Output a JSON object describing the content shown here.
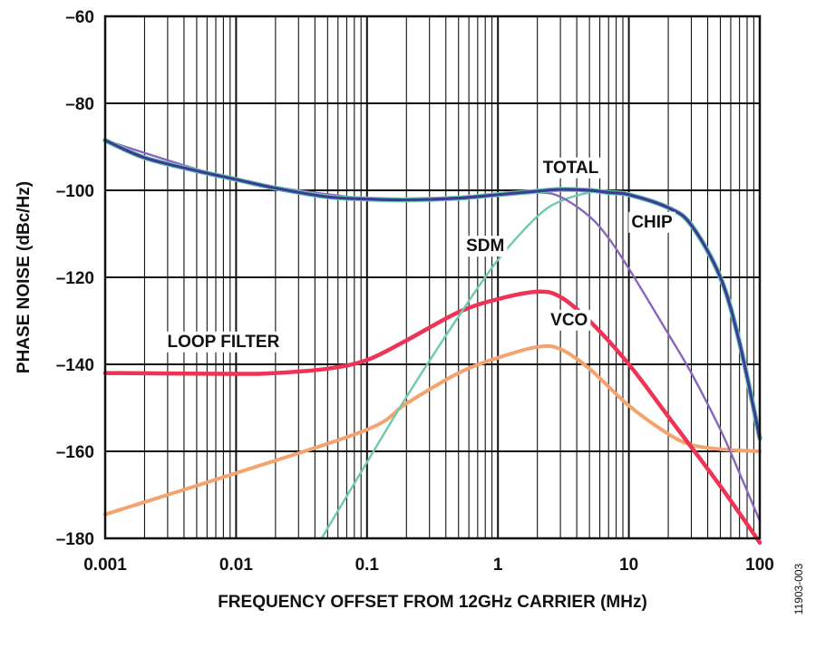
{
  "figure_id": "11903-003",
  "chart_data": {
    "type": "line",
    "xlabel": "FREQUENCY OFFSET FROM 12GHz CARRIER (MHz)",
    "ylabel": "PHASE NOISE (dBc/Hz)",
    "x_scale": "log",
    "xlim": [
      0.001,
      100
    ],
    "ylim": [
      -180,
      -60
    ],
    "x_ticks": [
      0.001,
      0.01,
      0.1,
      1,
      10,
      100
    ],
    "x_tick_labels": [
      "0.001",
      "0.01",
      "0.1",
      "1",
      "10",
      "100"
    ],
    "y_ticks": [
      -60,
      -80,
      -100,
      -120,
      -140,
      -160,
      -180
    ],
    "y_tick_labels": [
      "–60",
      "–80",
      "–100",
      "–120",
      "–140",
      "–160",
      "–180"
    ],
    "grid": true,
    "legend": "none",
    "series": [
      {
        "name": "TOTAL",
        "color": "#3c3c96",
        "x": [
          0.001,
          0.002,
          0.005,
          0.01,
          0.02,
          0.05,
          0.1,
          0.2,
          0.5,
          1,
          2,
          3,
          5,
          7,
          10,
          20,
          30,
          50,
          70,
          100
        ],
        "y": [
          -88.5,
          -92.5,
          -95.5,
          -97.5,
          -99.5,
          -101.5,
          -102,
          -102.2,
          -101.8,
          -101,
          -100.2,
          -99.8,
          -100,
          -100.5,
          -101,
          -104,
          -108,
          -120,
          -135,
          -157
        ]
      },
      {
        "name": "CHIP",
        "color": "#8866bb",
        "x": [
          0.001,
          0.01,
          0.1,
          0.2,
          0.5,
          1,
          2,
          3,
          5,
          7,
          10,
          20,
          30,
          50,
          70,
          100
        ],
        "y": [
          -88.5,
          -97.5,
          -102,
          -102.2,
          -101.8,
          -101,
          -100.5,
          -101.5,
          -106,
          -111,
          -118,
          -133,
          -142,
          -155,
          -165,
          -176
        ]
      },
      {
        "name": "SDM",
        "color": "#6fc9b0",
        "x": [
          0.045,
          0.1,
          0.2,
          0.5,
          1,
          2,
          3,
          5,
          7,
          10,
          20,
          30,
          50,
          70,
          100
        ],
        "y": [
          -180,
          -162.5,
          -147.5,
          -129,
          -116,
          -106,
          -102.5,
          -100.5,
          -100.3,
          -101,
          -104,
          -108,
          -120,
          -135,
          -157
        ]
      },
      {
        "name": "LOOP FILTER",
        "color": "#ee3355",
        "x": [
          0.001,
          0.01,
          0.02,
          0.05,
          0.1,
          0.2,
          0.5,
          1,
          2,
          3,
          5,
          10,
          20,
          50,
          100
        ],
        "y": [
          -142,
          -142.2,
          -142,
          -141,
          -139,
          -134.5,
          -128,
          -125,
          -123.3,
          -124.5,
          -130,
          -140,
          -152,
          -168,
          -181
        ]
      },
      {
        "name": "VCO",
        "color": "#f4a26e",
        "x": [
          0.001,
          0.01,
          0.1,
          0.2,
          0.5,
          1,
          2,
          3,
          5,
          10,
          20,
          30,
          50,
          100
        ],
        "y": [
          -174.5,
          -165,
          -155,
          -149,
          -142,
          -138.5,
          -136,
          -136.5,
          -141,
          -149.5,
          -156,
          -158.5,
          -159.5,
          -160
        ]
      }
    ],
    "annotations": [
      {
        "text": "TOTAL",
        "x": 3.6,
        "y": -96
      },
      {
        "text": "CHIP",
        "x": 15,
        "y": -108.5
      },
      {
        "text": "SDM",
        "x": 0.8,
        "y": -114
      },
      {
        "text": "LOOP FILTER",
        "x": 0.008,
        "y": -136
      },
      {
        "text": "VCO",
        "x": 3.5,
        "y": -131
      }
    ]
  }
}
